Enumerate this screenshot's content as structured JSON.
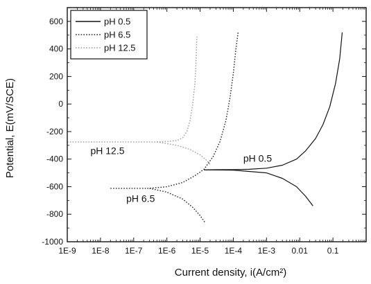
{
  "chart_data": {
    "type": "line",
    "xlabel": "Current density, i(A/cm²)",
    "ylabel": "Potential, E(mV/SCE)",
    "x_scale": "log",
    "xlim": [
      1e-09,
      1
    ],
    "ylim": [
      -1000,
      700
    ],
    "x_ticks": [
      1e-09,
      1e-08,
      1e-07,
      1e-06,
      1e-05,
      0.0001,
      0.001,
      0.01,
      0.1
    ],
    "x_tick_labels": [
      "1E-9",
      "1E-8",
      "1E-7",
      "1E-6",
      "1E-5",
      "1E-4",
      "1E-3",
      "0.01",
      "0.1"
    ],
    "y_ticks": [
      -1000,
      -800,
      -600,
      -400,
      -200,
      0,
      200,
      400,
      600
    ],
    "y_tick_labels": [
      "-1000",
      "-800",
      "-600",
      "-400",
      "-200",
      "0",
      "200",
      "400",
      "600"
    ],
    "grid": false,
    "legend_position": "top-left",
    "series": [
      {
        "name": "pH 0.5",
        "style": "solid",
        "color": "#111111",
        "points": [
          [
            1.3e-05,
            -478
          ],
          [
            3e-05,
            -477
          ],
          [
            0.0001,
            -476
          ],
          [
            0.0003,
            -474
          ],
          [
            0.001,
            -466
          ],
          [
            0.003,
            -444
          ],
          [
            0.008,
            -400
          ],
          [
            0.015,
            -340
          ],
          [
            0.03,
            -250
          ],
          [
            0.05,
            -150
          ],
          [
            0.08,
            -20
          ],
          [
            0.12,
            150
          ],
          [
            0.16,
            330
          ],
          [
            0.19,
            520
          ]
        ]
      },
      {
        "name": "pH 0.5",
        "style": "solid",
        "color": "#111111",
        "points": [
          [
            1.3e-05,
            -478
          ],
          [
            0.0001,
            -480
          ],
          [
            0.001,
            -500
          ],
          [
            0.003,
            -540
          ],
          [
            0.008,
            -600
          ],
          [
            0.015,
            -670
          ],
          [
            0.025,
            -740
          ]
        ]
      },
      {
        "name": "pH 6.5",
        "style": "dotted",
        "color": "#222222",
        "points": [
          [
            2e-08,
            -612
          ],
          [
            1e-07,
            -612
          ],
          [
            3e-07,
            -612
          ],
          [
            1e-06,
            -600
          ],
          [
            3e-06,
            -570
          ],
          [
            7e-06,
            -520
          ],
          [
            1.3e-05,
            -475
          ],
          [
            2.5e-05,
            -380
          ],
          [
            4e-05,
            -270
          ],
          [
            6e-05,
            -120
          ],
          [
            8e-05,
            50
          ],
          [
            0.0001,
            220
          ],
          [
            0.00012,
            400
          ],
          [
            0.00014,
            520
          ]
        ]
      },
      {
        "name": "pH 6.5",
        "style": "dotted",
        "color": "#222222",
        "points": [
          [
            3e-07,
            -612
          ],
          [
            1e-06,
            -640
          ],
          [
            3e-06,
            -690
          ],
          [
            6e-06,
            -750
          ],
          [
            1e-05,
            -810
          ],
          [
            1.4e-05,
            -860
          ]
        ]
      },
      {
        "name": "pH 12.5",
        "style": "dotted",
        "color": "#9a9a9a",
        "points": [
          [
            1e-09,
            -275
          ],
          [
            1e-08,
            -275
          ],
          [
            1e-07,
            -275
          ],
          [
            5e-07,
            -275
          ],
          [
            1e-06,
            -272
          ],
          [
            2e-06,
            -265
          ],
          [
            3e-06,
            -245
          ],
          [
            4e-06,
            -200
          ],
          [
            5e-06,
            -120
          ],
          [
            6e-06,
            0
          ],
          [
            7e-06,
            150
          ],
          [
            7.5e-06,
            300
          ],
          [
            8e-06,
            490
          ]
        ]
      },
      {
        "name": "pH 12.5",
        "style": "dotted",
        "color": "#9a9a9a",
        "points": [
          [
            5e-07,
            -275
          ],
          [
            2e-06,
            -300
          ],
          [
            5e-06,
            -330
          ],
          [
            1e-05,
            -370
          ],
          [
            1.6e-05,
            -410
          ],
          [
            2e-05,
            -440
          ]
        ]
      }
    ],
    "legend": [
      {
        "name": "pH 0.5",
        "style": "solid",
        "color": "#111111"
      },
      {
        "name": "pH 6.5",
        "style": "dotted",
        "color": "#222222"
      },
      {
        "name": "pH 12.5",
        "style": "dotted",
        "color": "#9a9a9a"
      }
    ],
    "annotations": [
      {
        "text": "pH 12.5",
        "x": 5e-09,
        "y": -365
      },
      {
        "text": "pH 0.5",
        "x": 0.0002,
        "y": -420
      },
      {
        "text": "pH 6.5",
        "x": 6e-08,
        "y": -710
      }
    ]
  }
}
